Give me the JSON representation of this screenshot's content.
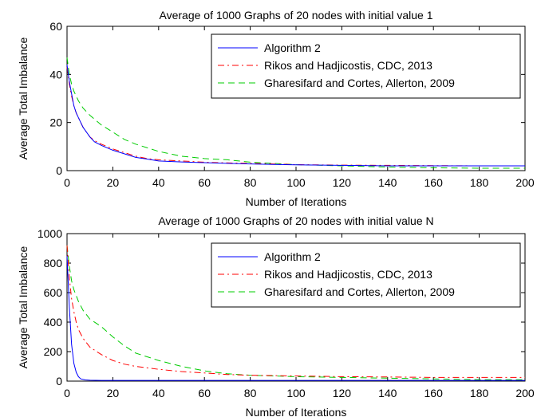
{
  "chart_data": [
    {
      "type": "line",
      "title": "Average of 1000 Graphs of 20 nodes with initial value 1",
      "xlabel": "Number of Iterations",
      "ylabel": "Average Total Imbalance",
      "xlim": [
        0,
        200
      ],
      "ylim": [
        0,
        60
      ],
      "xticks": [
        "0",
        "20",
        "40",
        "60",
        "80",
        "100",
        "120",
        "140",
        "160",
        "180",
        "200"
      ],
      "yticks": [
        "0",
        "20",
        "40",
        "60"
      ],
      "legend_placement": "top-right",
      "series": [
        {
          "name": "Algorithm 2",
          "color": "#0000ff",
          "dash": "solid",
          "x": [
            0,
            1,
            2,
            3,
            4,
            5,
            7,
            10,
            12,
            15,
            20,
            25,
            30,
            35,
            40,
            50,
            60,
            70,
            80,
            90,
            100,
            120,
            140,
            160,
            180,
            200
          ],
          "y": [
            44,
            37,
            32,
            27,
            24,
            22,
            18,
            14,
            12,
            10.5,
            8.5,
            7,
            5.5,
            4.8,
            4,
            3.6,
            3.3,
            3,
            2.8,
            2.6,
            2.4,
            2.2,
            2,
            2,
            2,
            2
          ]
        },
        {
          "name": "Rikos and Hadjicostis, CDC, 2013",
          "color": "#ff0000",
          "dash": "dashdot",
          "x": [
            0,
            1,
            2,
            3,
            4,
            5,
            7,
            10,
            12,
            15,
            20,
            25,
            30,
            35,
            40,
            50,
            60,
            70,
            80,
            90,
            100,
            120,
            140,
            160,
            180,
            200
          ],
          "y": [
            43,
            36,
            31,
            27,
            24,
            22,
            18,
            14,
            12.5,
            11,
            9,
            7.5,
            6,
            5,
            4.5,
            4,
            3.5,
            3.2,
            3,
            2.8,
            2.5,
            2.3,
            2.2,
            2.1,
            2,
            2
          ]
        },
        {
          "name": "Gharesifard and Cortes, Allerton, 2009",
          "color": "#00cc00",
          "dash": "dashed",
          "x": [
            0,
            1,
            2,
            3,
            4,
            5,
            7,
            10,
            15,
            20,
            25,
            30,
            40,
            50,
            60,
            70,
            80,
            90,
            100,
            120,
            140,
            160,
            180,
            200
          ],
          "y": [
            47,
            40,
            36,
            33,
            31,
            29,
            26,
            23,
            19,
            16,
            13,
            11,
            8,
            6,
            5,
            4.5,
            3.5,
            3,
            2.5,
            2,
            1.5,
            1.2,
            1,
            1
          ]
        }
      ]
    },
    {
      "type": "line",
      "title": "Average of 1000 Graphs of 20 nodes with initial value N",
      "xlabel": "Number of Iterations",
      "ylabel": "Average Total Imbalance",
      "xlim": [
        0,
        200
      ],
      "ylim": [
        0,
        1000
      ],
      "xticks": [
        "0",
        "20",
        "40",
        "60",
        "80",
        "100",
        "120",
        "140",
        "160",
        "180",
        "200"
      ],
      "yticks": [
        "0",
        "200",
        "400",
        "600",
        "800",
        "1000"
      ],
      "legend_placement": "top-right",
      "series": [
        {
          "name": "Algorithm 2",
          "color": "#0000ff",
          "dash": "solid",
          "x": [
            0,
            1,
            2,
            3,
            4,
            5,
            6,
            8,
            10,
            15,
            20,
            40,
            60,
            80,
            100,
            120,
            140,
            160,
            180,
            200
          ],
          "y": [
            850,
            500,
            250,
            120,
            60,
            30,
            15,
            8,
            6,
            5,
            5,
            5,
            5,
            5,
            5,
            5,
            5,
            5,
            5,
            5
          ]
        },
        {
          "name": "Rikos and Hadjicostis, CDC, 2013",
          "color": "#ff0000",
          "dash": "dashdot",
          "x": [
            0,
            1,
            2,
            3,
            4,
            5,
            7,
            10,
            15,
            20,
            25,
            30,
            40,
            50,
            60,
            70,
            80,
            100,
            120,
            140,
            160,
            180,
            200
          ],
          "y": [
            920,
            700,
            560,
            470,
            400,
            350,
            290,
            230,
            180,
            140,
            115,
            100,
            80,
            65,
            55,
            45,
            40,
            35,
            30,
            28,
            25,
            25,
            25
          ]
        },
        {
          "name": "Gharesifard and Cortes, Allerton, 2009",
          "color": "#00cc00",
          "dash": "dashed",
          "x": [
            0,
            1,
            2,
            3,
            4,
            5,
            7,
            10,
            15,
            20,
            25,
            30,
            40,
            50,
            60,
            70,
            80,
            100,
            120,
            140,
            160,
            180,
            200
          ],
          "y": [
            920,
            780,
            680,
            620,
            580,
            540,
            480,
            420,
            370,
            300,
            240,
            190,
            140,
            100,
            70,
            50,
            40,
            30,
            25,
            20,
            15,
            10,
            10
          ]
        }
      ]
    }
  ]
}
